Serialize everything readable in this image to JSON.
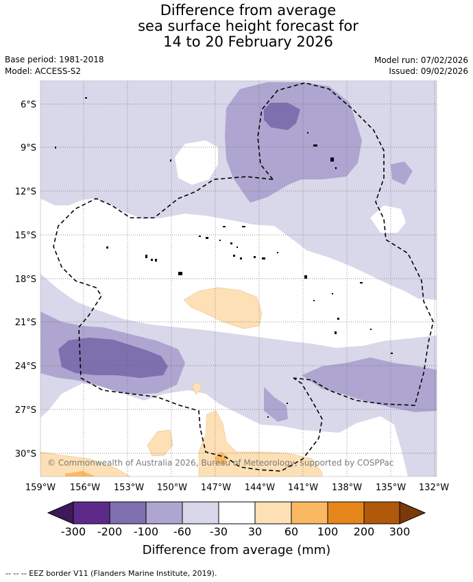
{
  "title": {
    "line1": "Difference from average",
    "line2": "sea surface height forecast for",
    "line3": "14 to 20 February 2026"
  },
  "meta": {
    "base_period": "Base period: 1981-2018",
    "model": "Model: ACCESS-S2",
    "model_run": "Model run: 07/02/2026",
    "issued": "Issued: 09/02/2026"
  },
  "axes": {
    "lat_labels": [
      "6°S",
      "9°S",
      "12°S",
      "15°S",
      "18°S",
      "21°S",
      "24°S",
      "27°S",
      "30°S"
    ],
    "lon_labels": [
      "159°W",
      "156°W",
      "153°W",
      "150°W",
      "147°W",
      "144°W",
      "141°W",
      "138°W",
      "135°W",
      "132°W"
    ]
  },
  "copyright": "© Commonwealth of Australia 2026, Bureau of Meteorology, supported by COSPPac",
  "colorbar": {
    "labels": [
      "-300",
      "-200",
      "-100",
      "-60",
      "-30",
      "30",
      "60",
      "100",
      "200",
      "300"
    ],
    "colors": [
      "#3f1a5a",
      "#5e2a8a",
      "#7e6fae",
      "#aea6d0",
      "#d8d8ea",
      "#ffffff",
      "#fde0b5",
      "#fbb862",
      "#e5861a",
      "#b0590a",
      "#7a3a0a"
    ],
    "title": "Difference from average (mm)"
  },
  "footer": "--  --  -- EEZ border V11 (Flanders Marine Institute, 2019)."
}
